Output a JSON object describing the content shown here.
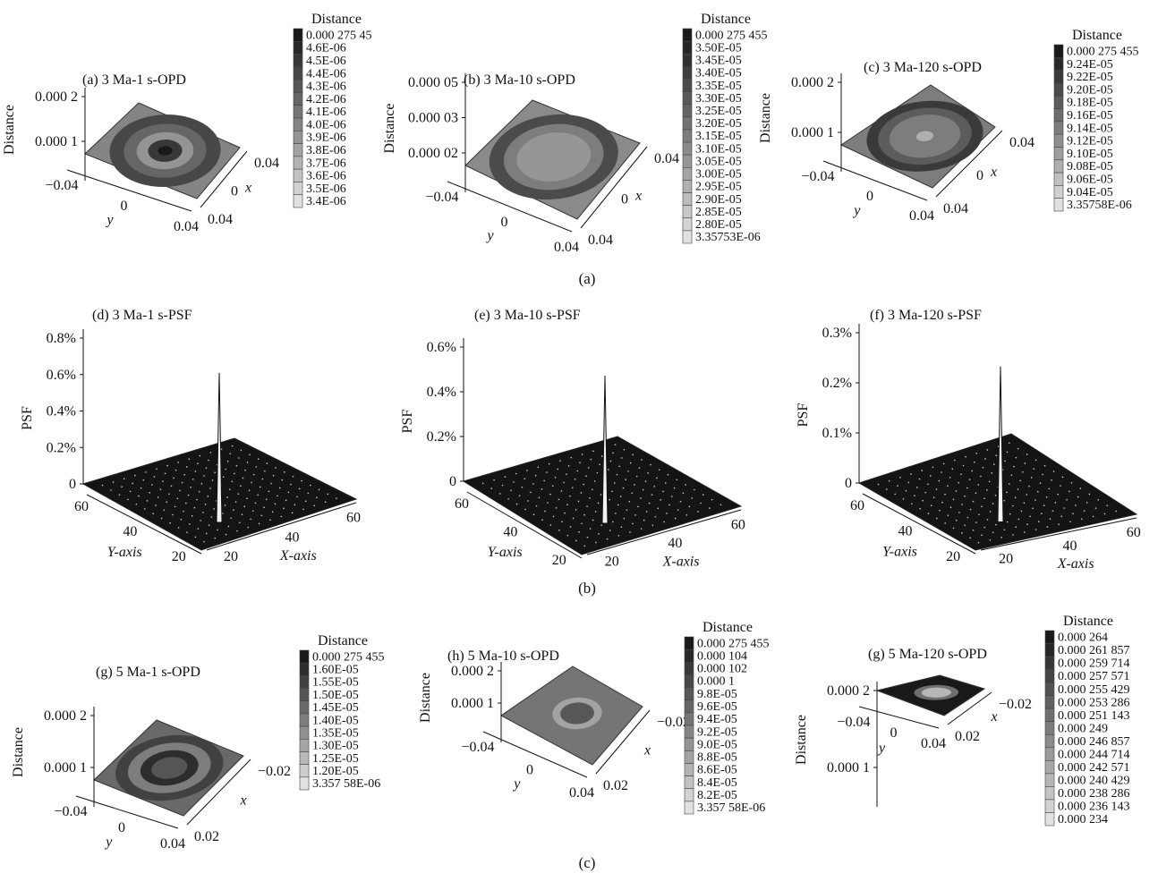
{
  "figure": {
    "row_captions": [
      "(a)",
      "(b)",
      "(c)"
    ]
  },
  "chart_data": [
    {
      "type": "heatmap",
      "panel": "a",
      "title": "(a) 3 Ma-1 s-OPD",
      "zlabel": "Distance",
      "z_ticks": [
        "0.000 1",
        "0.000 2"
      ],
      "y_ticks": [
        "−0.04",
        "0",
        "0.04"
      ],
      "x_ticks": [
        "0.04",
        "0",
        "0.04"
      ],
      "ylabel": "y",
      "xlabel": "x",
      "colorbar": {
        "title": "Distance",
        "labels": [
          "0.000 275 45",
          "4.6E-06",
          "4.5E-06",
          "4.4E-06",
          "4.3E-06",
          "4.2E-06",
          "4.1E-06",
          "4.0E-06",
          "3.9E-06",
          "3.8E-06",
          "3.7E-06",
          "3.6E-06",
          "3.5E-06",
          "3.4E-06"
        ]
      },
      "rings": [
        {
          "r": 1.0,
          "level": 6
        },
        {
          "r": 0.78,
          "level": 10
        },
        {
          "r": 0.58,
          "level": 8
        },
        {
          "r": 0.4,
          "level": 5
        },
        {
          "r": 0.24,
          "level": 11
        },
        {
          "r": 0.1,
          "level": 13
        }
      ]
    },
    {
      "type": "heatmap",
      "panel": "b",
      "title": "(b) 3 Ma-10 s-OPD",
      "zlabel": "Distance",
      "z_ticks": [
        "0.000 02",
        "0.000 03",
        "0.000 05"
      ],
      "y_ticks": [
        "−0.04",
        "0",
        "0.04"
      ],
      "x_ticks": [
        "0.04",
        "0",
        "0.04"
      ],
      "ylabel": "y",
      "xlabel": "x",
      "colorbar": {
        "title": "Distance",
        "labels": [
          "0.000 275 455",
          "3.50E-05",
          "3.45E-05",
          "3.40E-05",
          "3.35E-05",
          "3.30E-05",
          "3.25E-05",
          "3.20E-05",
          "3.15E-05",
          "3.10E-05",
          "3.05E-05",
          "3.00E-05",
          "2.95E-05",
          "2.90E-05",
          "2.85E-05",
          "2.80E-05",
          "3.35753E-06"
        ]
      },
      "rings": [
        {
          "r": 1.0,
          "level": 7
        },
        {
          "r": 0.8,
          "level": 12
        },
        {
          "r": 0.62,
          "level": 8
        },
        {
          "r": 0.46,
          "level": 6
        },
        {
          "r": 0.28,
          "level": 6
        }
      ]
    },
    {
      "type": "heatmap",
      "panel": "c",
      "title": "(c) 3 Ma-120 s-OPD",
      "zlabel": "Distance",
      "z_ticks": [
        "0.000 1",
        "0.000 2"
      ],
      "y_ticks": [
        "−0.04",
        "0",
        "0.04"
      ],
      "x_ticks": [
        "0.04",
        "0",
        "0.04"
      ],
      "ylabel": "y",
      "xlabel": "x",
      "colorbar": {
        "title": "Distance",
        "labels": [
          "0.000 275 455",
          "9.24E-05",
          "9.22E-05",
          "9.20E-05",
          "9.18E-05",
          "9.16E-05",
          "9.14E-05",
          "9.12E-05",
          "9.10E-05",
          "9.08E-05",
          "9.06E-05",
          "9.04E-05",
          "3.35758E-06"
        ]
      },
      "rings": [
        {
          "r": 1.0,
          "level": 6
        },
        {
          "r": 0.82,
          "level": 10
        },
        {
          "r": 0.66,
          "level": 8
        },
        {
          "r": 0.5,
          "level": 6
        },
        {
          "r": 0.12,
          "level": 3
        }
      ]
    },
    {
      "type": "surface",
      "panel": "d",
      "title": "(d) 3 Ma-1 s-PSF",
      "zlabel": "PSF",
      "z_ticks": [
        "0",
        "0.2%",
        "0.4%",
        "0.6%",
        "0.8%"
      ],
      "zmax": 0.8,
      "peak": 0.82,
      "ylabel": "Y-axis",
      "xlabel": "X-axis",
      "y_ticks": [
        "60",
        "40",
        "20"
      ],
      "x_ticks": [
        "20",
        "40",
        "60"
      ]
    },
    {
      "type": "surface",
      "panel": "e",
      "title": "(e) 3 Ma-10 s-PSF",
      "zlabel": "PSF",
      "z_ticks": [
        "0",
        "0.2%",
        "0.4%",
        "0.6%"
      ],
      "zmax": 0.6,
      "peak": 0.66,
      "ylabel": "Y-axis",
      "xlabel": "X-axis",
      "y_ticks": [
        "60",
        "40",
        "20"
      ],
      "x_ticks": [
        "20",
        "40",
        "60"
      ]
    },
    {
      "type": "surface",
      "panel": "f",
      "title": "(f) 3 Ma-120 s-PSF",
      "zlabel": "PSF",
      "z_ticks": [
        "0",
        "0.1%",
        "0.2%",
        "0.3%"
      ],
      "zmax": 0.3,
      "peak": 0.31,
      "ylabel": "Y-axis",
      "xlabel": "X-axis",
      "y_ticks": [
        "60",
        "40",
        "20"
      ],
      "x_ticks": [
        "20",
        "40",
        "60"
      ]
    },
    {
      "type": "heatmap",
      "panel": "g",
      "title": "(g) 5 Ma-1 s-OPD",
      "zlabel": "Distance",
      "z_ticks": [
        "0.000 1",
        "0.000 2"
      ],
      "y_ticks": [
        "−0.04",
        "0",
        "0.04"
      ],
      "x_ticks": [
        "0.02",
        "−0.02"
      ],
      "ylabel": "y",
      "xlabel": "x",
      "colorbar": {
        "title": "Distance",
        "labels": [
          "0.000 275 455",
          "1.60E-05",
          "1.55E-05",
          "1.50E-05",
          "1.45E-05",
          "1.40E-05",
          "1.35E-05",
          "1.30E-05",
          "1.25E-05",
          "1.20E-05",
          "3.357 58E-06"
        ]
      },
      "rings": [
        {
          "r": 1.0,
          "level": 6
        },
        {
          "r": 0.78,
          "level": 8
        },
        {
          "r": 0.6,
          "level": 5
        },
        {
          "r": 0.42,
          "level": 9
        },
        {
          "r": 0.26,
          "level": 7
        }
      ]
    },
    {
      "type": "heatmap",
      "panel": "h",
      "title": "(h) 5 Ma-10 s-OPD",
      "zlabel": "Distance",
      "z_ticks": [
        "0.000 1",
        "0.000 2"
      ],
      "y_ticks": [
        "−0.04",
        "0",
        "0.04"
      ],
      "x_ticks": [
        "0.02",
        "−0.02"
      ],
      "ylabel": "y",
      "xlabel": "x",
      "colorbar": {
        "title": "Distance",
        "labels": [
          "0.000 275 455",
          "0.000 104",
          "0.000 102",
          "0.000 1",
          "9.8E-05",
          "9.6E-05",
          "9.4E-05",
          "9.2E-05",
          "9.0E-05",
          "8.8E-05",
          "8.6E-05",
          "8.4E-05",
          "8.2E-05",
          "3.357 58E-06"
        ]
      },
      "rings": [
        {
          "r": 1.0,
          "level": 7
        },
        {
          "r": 0.38,
          "level": 4
        },
        {
          "r": 0.26,
          "level": 9
        }
      ]
    },
    {
      "type": "heatmap",
      "panel": "i",
      "title": "(g) 5 Ma-120 s-OPD",
      "zlabel": "Distance",
      "z_ticks": [
        "0.000 1",
        "0.000 2"
      ],
      "y_ticks": [
        "−0.04",
        "0",
        "0.04"
      ],
      "x_ticks": [
        "0.02",
        "−0.02"
      ],
      "ylabel": "y",
      "xlabel": "x",
      "colorbar": {
        "title": "Distance",
        "labels": [
          "0.000 264",
          "0.000 261 857",
          "0.000 259 714",
          "0.000 257 571",
          "0.000 255 429",
          "0.000 253 286",
          "0.000 251 143",
          "0.000 249",
          "0.000 246 857",
          "0.000 244 714",
          "0.000 242 571",
          "0.000 240 429",
          "0.000 238 286",
          "0.000 236 143",
          "0.000 234"
        ]
      },
      "rings": [
        {
          "r": 1.0,
          "level": 14
        },
        {
          "r": 0.45,
          "level": 8
        },
        {
          "r": 0.3,
          "level": 3
        }
      ]
    }
  ]
}
